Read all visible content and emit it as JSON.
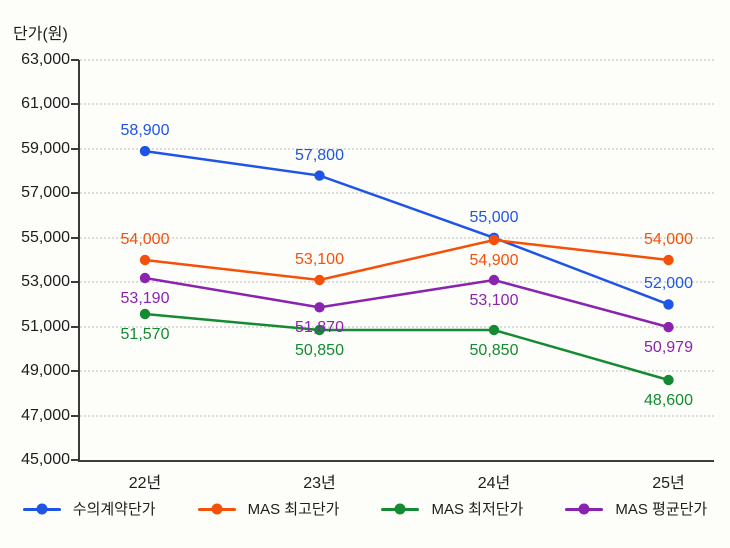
{
  "chart_data": {
    "type": "line",
    "title": "",
    "ylabel": "단가(원)",
    "xlabel": "",
    "categories": [
      "22년",
      "23년",
      "24년",
      "25년"
    ],
    "series": [
      {
        "name": "수의계약단가",
        "color": "#1e55e6",
        "values": [
          58900,
          57800,
          55000,
          52000
        ],
        "labels": [
          "58,900",
          "57,800",
          "55,000",
          "52,000"
        ],
        "label_side": [
          "above",
          "above",
          "above",
          "above"
        ]
      },
      {
        "name": "MAS 최고단가",
        "color": "#f5500a",
        "values": [
          54000,
          53100,
          54900,
          54000
        ],
        "labels": [
          "54,000",
          "53,100",
          "54,900",
          "54,000"
        ],
        "label_side": [
          "above",
          "above",
          "below",
          "above"
        ]
      },
      {
        "name": "MAS 최저단가",
        "color": "#148a32",
        "values": [
          51570,
          50850,
          50850,
          48600
        ],
        "labels": [
          "51,570",
          "50,850",
          "50,850",
          "48,600"
        ],
        "label_side": [
          "below",
          "below",
          "below",
          "below"
        ]
      },
      {
        "name": "MAS 평균단가",
        "color": "#8a23b0",
        "values": [
          53190,
          51870,
          53100,
          50979
        ],
        "labels": [
          "53,190",
          "51,870",
          "53,100",
          "50,979"
        ],
        "label_side": [
          "below",
          "below",
          "below",
          "below"
        ]
      }
    ],
    "y_axis": {
      "min": 45000,
      "max": 63000,
      "step": 2000,
      "tick_labels": [
        "45,000",
        "47,000",
        "49,000",
        "51,000",
        "53,000",
        "55,000",
        "57,000",
        "59,000",
        "61,000",
        "63,000"
      ]
    },
    "grid": "horizontal-dotted",
    "legend_position": "bottom",
    "axis_color": "#3b3b3b",
    "text_color": "#1d1d1d",
    "grid_color": "#dcdcda",
    "background": "#fdfdfa"
  }
}
